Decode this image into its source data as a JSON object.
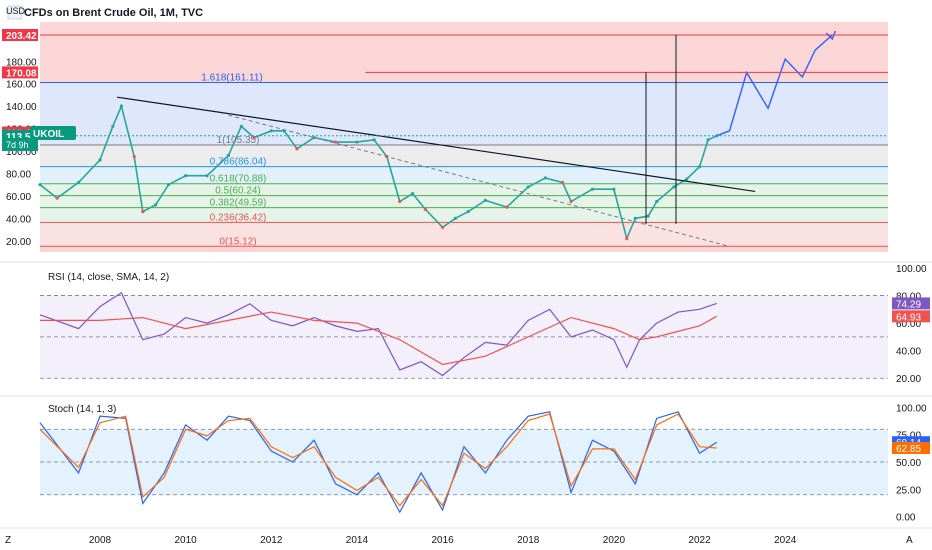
{
  "chart_title": "CFDs on Brent Crude Oil, 1M, TVC",
  "currency": "USD",
  "symbol_badge": "UKOIL",
  "countdown_badge": "7d 9h",
  "corner_left": "Z",
  "corner_right": "A",
  "colors": {
    "up": "#26a69a",
    "down": "#ef5350",
    "projection": "#2962ff",
    "rsi_line": "#7e57c2",
    "rsi_sma": "#ef5350",
    "stoch_k": "#2962ff",
    "stoch_d": "#ff6d00"
  },
  "price_axis": {
    "min": 10,
    "max": 215,
    "ticks": [
      "20.00",
      "40.00",
      "60.00",
      "80.00",
      "100.00",
      "120.00",
      "140.00",
      "160.00",
      "180.00"
    ],
    "badges": [
      {
        "label": "203.42",
        "value": 203.42,
        "color": "#f23645"
      },
      {
        "label": "170.08",
        "value": 170.08,
        "color": "#f23645"
      },
      {
        "label": "116.46",
        "value": 116.46,
        "color": "#f23645"
      },
      {
        "label": "113.58",
        "value": 113.58,
        "color": "#089981"
      }
    ]
  },
  "time_axis": {
    "start": 2006.6,
    "end": 2026.4,
    "ticks": [
      {
        "label": "2008",
        "year": 2008
      },
      {
        "label": "2010",
        "year": 2010
      },
      {
        "label": "2012",
        "year": 2012
      },
      {
        "label": "2014",
        "year": 2014
      },
      {
        "label": "2016",
        "year": 2016
      },
      {
        "label": "2018",
        "year": 2018
      },
      {
        "label": "2020",
        "year": 2020
      },
      {
        "label": "2022",
        "year": 2022
      },
      {
        "label": "2024",
        "year": 2024
      }
    ]
  },
  "fibonacci": [
    {
      "ratio": 0,
      "price": 15.12,
      "label": "0(15.12)",
      "color": "#ef5350"
    },
    {
      "ratio": 0.236,
      "price": 36.42,
      "label": "0.236(36.42)",
      "color": "#ef5350"
    },
    {
      "ratio": 0.382,
      "price": 49.59,
      "label": "0.382(49.59)",
      "color": "#4caf50"
    },
    {
      "ratio": 0.5,
      "price": 60.24,
      "label": "0.5(60.24)",
      "color": "#4caf50"
    },
    {
      "ratio": 0.618,
      "price": 70.88,
      "label": "0.618(70.88)",
      "color": "#4caf50"
    },
    {
      "ratio": 0.786,
      "price": 86.04,
      "label": "0.786(86.04)",
      "color": "#2196f3"
    },
    {
      "ratio": 1,
      "price": 105.35,
      "label": "1(105.35)",
      "color": "#787b86"
    },
    {
      "ratio": 1.618,
      "price": 161.11,
      "label": "1.618(161.11)",
      "color": "#2962ff"
    }
  ],
  "rsi_pane": {
    "title": "RSI (14, close, SMA, 14, 2)",
    "ticks": [
      "20.00",
      "40.00",
      "60.00",
      "80.00",
      "100.00"
    ],
    "last_rsi": "74.29",
    "last_sma": "64.93"
  },
  "stoch_pane": {
    "title": "Stoch (14, 1, 3)",
    "ticks": [
      "0.00",
      "25.00",
      "50.00",
      "75.00",
      "100.00"
    ],
    "last_k": "68.14",
    "last_d": "62.85"
  },
  "chart_data": [
    {
      "type": "line",
      "title": "CFDs on Brent Crude Oil, 1M, TVC",
      "ylabel": "USD",
      "ylim": [
        10,
        215
      ],
      "xlim": [
        2006.6,
        2026.4
      ],
      "series": [
        {
          "name": "UKOIL",
          "x": [
            2006.6,
            2007.0,
            2007.5,
            2008.0,
            2008.3,
            2008.5,
            2008.8,
            2009.0,
            2009.3,
            2009.6,
            2010.0,
            2010.5,
            2011.0,
            2011.3,
            2011.6,
            2012.0,
            2012.3,
            2012.6,
            2013.0,
            2013.5,
            2014.0,
            2014.4,
            2014.7,
            2015.0,
            2015.3,
            2015.6,
            2016.0,
            2016.3,
            2016.6,
            2017.0,
            2017.5,
            2018.0,
            2018.4,
            2018.8,
            2019.0,
            2019.5,
            2020.0,
            2020.3,
            2020.5,
            2020.8,
            2021.0,
            2021.4,
            2021.7,
            2022.0,
            2022.2,
            2022.4
          ],
          "values": [
            70,
            58,
            72,
            92,
            122,
            140,
            95,
            46,
            52,
            70,
            78,
            78,
            96,
            122,
            112,
            118,
            118,
            102,
            112,
            108,
            108,
            110,
            95,
            55,
            62,
            48,
            32,
            40,
            46,
            56,
            50,
            68,
            76,
            72,
            55,
            66,
            66,
            22,
            40,
            42,
            55,
            68,
            75,
            86,
            110,
            113.58
          ]
        },
        {
          "name": "Projection",
          "x": [
            2022.4,
            2022.7,
            2023.1,
            2023.6,
            2024.0,
            2024.4,
            2024.7,
            2025.1
          ],
          "values": [
            113.58,
            118,
            170,
            138,
            182,
            166,
            190,
            203.42
          ]
        }
      ],
      "trend_lines": [
        {
          "name": "Descending trendline",
          "x": [
            2008.4,
            2023.3
          ],
          "values": [
            148,
            64
          ]
        },
        {
          "name": "Dashed trendline",
          "x": [
            2011.0,
            2022.7
          ],
          "values": [
            132,
            15
          ]
        }
      ],
      "horizontal_lines": [
        {
          "name": "Top target",
          "value": 203.42
        },
        {
          "name": "Second target",
          "value": 170.08,
          "x_start": 2014.2
        }
      ],
      "vertical_lines": [
        {
          "name": "Vertical line 1",
          "x": 2020.75,
          "top": 170.08
        },
        {
          "name": "Vertical line 2",
          "x": 2021.45,
          "top": 203.42
        }
      ]
    },
    {
      "type": "line",
      "title": "RSI (14, close, SMA, 14, 2)",
      "ylim": [
        10,
        100
      ],
      "series": [
        {
          "name": "RSI",
          "x": [
            2006.6,
            2007.5,
            2008.0,
            2008.5,
            2009.0,
            2009.5,
            2010.0,
            2010.5,
            2011.0,
            2011.5,
            2012.0,
            2012.5,
            2013.0,
            2013.5,
            2014.0,
            2014.5,
            2015.0,
            2015.5,
            2016.0,
            2016.5,
            2017.0,
            2017.5,
            2018.0,
            2018.5,
            2019.0,
            2019.5,
            2020.0,
            2020.3,
            2020.6,
            2021.0,
            2021.5,
            2022.0,
            2022.4
          ],
          "values": [
            66,
            56,
            72,
            82,
            48,
            52,
            64,
            60,
            66,
            74,
            62,
            58,
            64,
            58,
            54,
            56,
            26,
            32,
            22,
            35,
            46,
            44,
            62,
            70,
            50,
            55,
            48,
            28,
            48,
            60,
            68,
            70,
            74.29
          ]
        },
        {
          "name": "SMA",
          "x": [
            2006.6,
            2008.0,
            2009.0,
            2010.0,
            2011.0,
            2012.0,
            2013.0,
            2014.0,
            2015.0,
            2016.0,
            2017.0,
            2018.0,
            2019.0,
            2020.0,
            2020.6,
            2021.0,
            2022.0,
            2022.4
          ],
          "values": [
            62,
            62,
            64,
            56,
            62,
            68,
            62,
            60,
            48,
            30,
            36,
            50,
            64,
            56,
            48,
            50,
            58,
            64.93
          ]
        }
      ]
    },
    {
      "type": "line",
      "title": "Stoch (14, 1, 3)",
      "ylim": [
        -5,
        105
      ],
      "series": [
        {
          "name": "%K",
          "x": [
            2006.6,
            2007.5,
            2008.0,
            2008.6,
            2009.0,
            2009.5,
            2010.0,
            2010.5,
            2011.0,
            2011.5,
            2012.0,
            2012.5,
            2013.0,
            2013.5,
            2014.0,
            2014.5,
            2015.0,
            2015.5,
            2016.0,
            2016.5,
            2017.0,
            2017.5,
            2018.0,
            2018.5,
            2019.0,
            2019.5,
            2020.0,
            2020.5,
            2021.0,
            2021.5,
            2022.0,
            2022.4
          ],
          "values": [
            86,
            40,
            92,
            90,
            12,
            40,
            84,
            70,
            92,
            88,
            60,
            50,
            70,
            30,
            20,
            40,
            4,
            40,
            6,
            64,
            40,
            70,
            92,
            96,
            22,
            70,
            60,
            30,
            90,
            96,
            58,
            68.14
          ]
        },
        {
          "name": "%D",
          "x": [
            2006.6,
            2007.5,
            2008.0,
            2008.6,
            2009.0,
            2009.5,
            2010.0,
            2010.5,
            2011.0,
            2011.5,
            2012.0,
            2012.5,
            2013.0,
            2013.5,
            2014.0,
            2014.5,
            2015.0,
            2015.5,
            2016.0,
            2016.5,
            2017.0,
            2017.5,
            2018.0,
            2018.5,
            2019.0,
            2019.5,
            2020.0,
            2020.5,
            2021.0,
            2021.5,
            2022.0,
            2022.4
          ],
          "values": [
            80,
            45,
            86,
            92,
            18,
            36,
            80,
            74,
            88,
            90,
            64,
            54,
            64,
            36,
            24,
            36,
            10,
            34,
            10,
            58,
            44,
            64,
            88,
            94,
            28,
            62,
            62,
            34,
            84,
            94,
            64,
            62.85
          ]
        }
      ]
    }
  ]
}
